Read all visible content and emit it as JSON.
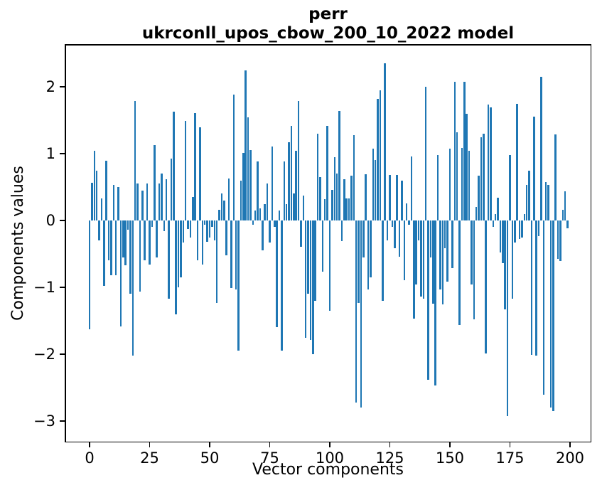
{
  "title": {
    "line1": "perr",
    "line2": "ukrconll_upos_cbow_200_10_2022 model"
  },
  "axes": {
    "xlabel": "Vector components",
    "ylabel": "Components values"
  },
  "bar_color": "#1f77b4",
  "chart_data": {
    "type": "bar",
    "title": "perr — ukrconll_upos_cbow_200_10_2022 model",
    "xlabel": "Vector components",
    "ylabel": "Components values",
    "legend": "none",
    "grid": false,
    "x_ticks": [
      0,
      25,
      50,
      75,
      100,
      125,
      150,
      175,
      200
    ],
    "y_ticks": [
      2,
      1,
      0,
      -1,
      -2,
      -3
    ],
    "xlim": [
      -11,
      210
    ],
    "ylim": [
      -3.32,
      2.64
    ],
    "n_components": 200,
    "values": [
      -1.63,
      0.56,
      1.04,
      0.74,
      -0.3,
      0.33,
      -0.98,
      0.89,
      -0.6,
      -0.82,
      0.53,
      -0.82,
      0.5,
      -1.58,
      -0.55,
      -0.67,
      -0.14,
      -1.1,
      -2.02,
      1.79,
      0.55,
      -1.06,
      0.45,
      -0.59,
      0.55,
      -0.66,
      -0.1,
      1.13,
      -0.55,
      0.55,
      0.7,
      -0.16,
      0.62,
      -1.17,
      0.93,
      1.63,
      -1.4,
      -1.0,
      -0.85,
      -0.33,
      1.49,
      -0.13,
      -0.25,
      0.35,
      1.61,
      -0.6,
      1.39,
      -0.66,
      -0.06,
      -0.32,
      -0.25,
      -0.09,
      -0.3,
      -1.23,
      0.16,
      0.4,
      0.3,
      -0.52,
      0.63,
      -1.01,
      1.88,
      -1.03,
      -1.95,
      0.6,
      1.01,
      2.24,
      1.54,
      1.05,
      -0.06,
      0.15,
      0.88,
      0.18,
      -0.45,
      0.24,
      0.55,
      -0.33,
      1.11,
      -0.1,
      -1.6,
      0.15,
      -1.95,
      0.88,
      0.25,
      1.17,
      1.42,
      0.4,
      1.04,
      1.79,
      -0.39,
      0.37,
      -1.75,
      -1.1,
      -1.79,
      -2.0,
      -1.2,
      1.3,
      0.65,
      -0.77,
      0.32,
      1.42,
      -1.35,
      0.46,
      0.95,
      0.7,
      1.64,
      -0.31,
      0.62,
      0.33,
      0.33,
      0.67,
      1.28,
      -2.72,
      -1.23,
      -2.8,
      -0.55,
      0.69,
      -1.03,
      -0.85,
      1.07,
      0.91,
      1.82,
      1.95,
      -1.2,
      2.35,
      -0.3,
      0.68,
      -0.09,
      -0.41,
      0.68,
      -0.54,
      0.6,
      -0.89,
      0.26,
      -0.06,
      0.96,
      -1.47,
      -0.96,
      -0.3,
      -1.14,
      -1.17,
      2.0,
      -2.38,
      -0.55,
      -1.24,
      -2.47,
      0.98,
      -1.03,
      -1.26,
      -0.41,
      -0.91,
      1.08,
      -0.71,
      2.07,
      1.32,
      -1.56,
      1.09,
      2.07,
      1.6,
      1.04,
      -0.96,
      -1.48,
      0.2,
      0.67,
      1.24,
      1.3,
      -1.99,
      1.73,
      1.69,
      -0.1,
      0.1,
      0.34,
      -0.48,
      -0.64,
      -1.33,
      -2.93,
      0.98,
      -1.17,
      -0.33,
      1.75,
      -0.28,
      -0.25,
      0.1,
      0.53,
      0.75,
      -2.01,
      1.55,
      -2.02,
      -0.23,
      2.15,
      -2.61,
      0.57,
      0.53,
      -2.8,
      -2.85,
      1.29,
      -0.57,
      -0.61,
      0.16,
      0.44,
      -0.12
    ]
  }
}
